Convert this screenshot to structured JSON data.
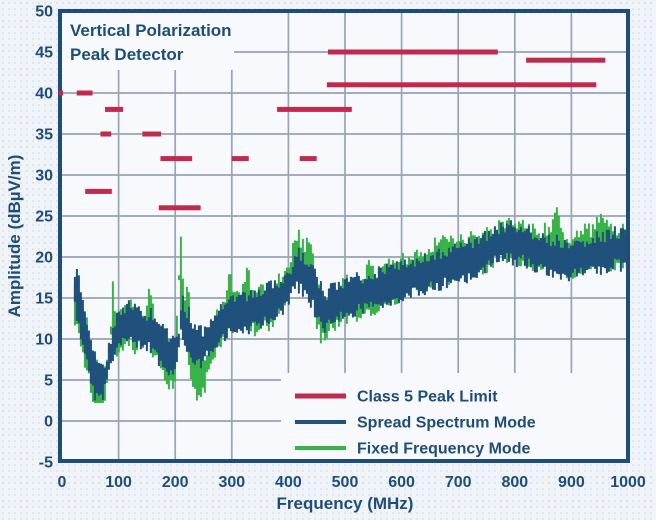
{
  "title": {
    "line1": "Vertical Polarization",
    "line2": "Peak Detector"
  },
  "axes": {
    "x": {
      "label": "Frequency (MHz)",
      "min": 0,
      "max": 1000,
      "tick_step": 100,
      "ticks": [
        0,
        100,
        200,
        300,
        400,
        500,
        600,
        700,
        800,
        900,
        1000
      ]
    },
    "y": {
      "label": "Amplitude (dBµV/m)",
      "min": -5,
      "max": 50,
      "tick_step": 5,
      "ticks": [
        50,
        45,
        40,
        35,
        30,
        25,
        20,
        15,
        10,
        5,
        0,
        -5
      ]
    }
  },
  "legend": {
    "position": "inside-bottom-right",
    "items": [
      {
        "label": "Class 5 Peak Limit",
        "color_key": "limit_red"
      },
      {
        "label": "Spread Spectrum Mode",
        "color_key": "navy_trace"
      },
      {
        "label": "Fixed Frequency Mode",
        "color_key": "green_trace"
      }
    ]
  },
  "colors": {
    "navy": "#1d4d78",
    "navy_trace": "#20507c",
    "green_trace": "#38b349",
    "limit_red": "#c02a4d",
    "grid": "#98a2b8",
    "page_bg": "#f0f3f8",
    "page_dot": "#dde4f0",
    "plot_bg": "#f7f9fc"
  },
  "chart_data": {
    "type": "line",
    "title": "Vertical Polarization Peak Detector",
    "xlabel": "Frequency (MHz)",
    "ylabel": "Amplitude (dBµV/m)",
    "xlim": [
      0,
      1000
    ],
    "ylim": [
      -5,
      50
    ],
    "grid": true,
    "legend_position": "inside-bottom-right",
    "series": [
      {
        "name": "Class 5 Peak Limit",
        "style": "limit_segments",
        "color_key": "limit_red",
        "unit": "dBµV/m",
        "segments": [
          {
            "from": -6,
            "to": 2,
            "level": 40
          },
          {
            "from": 26,
            "to": 54,
            "level": 40
          },
          {
            "from": 41,
            "to": 88,
            "level": 28
          },
          {
            "from": 68,
            "to": 87,
            "level": 35
          },
          {
            "from": 76,
            "to": 108,
            "level": 38
          },
          {
            "from": 142,
            "to": 175,
            "level": 35
          },
          {
            "from": 171,
            "to": 245,
            "level": 26
          },
          {
            "from": 174,
            "to": 230,
            "level": 32
          },
          {
            "from": 300,
            "to": 330,
            "level": 32
          },
          {
            "from": 380,
            "to": 512,
            "level": 38
          },
          {
            "from": 420,
            "to": 450,
            "level": 32
          },
          {
            "from": 468,
            "to": 944,
            "level": 41
          },
          {
            "from": 470,
            "to": 770,
            "level": 45
          },
          {
            "from": 820,
            "to": 960,
            "level": 44
          }
        ]
      },
      {
        "name": "Fixed Frequency Mode",
        "style": "noisy_band",
        "color_key": "green_trace",
        "band_halfwidth": 1.3,
        "noise_amp": 1.9,
        "seed": 3,
        "points": [
          [
            21,
            14
          ],
          [
            24,
            14
          ],
          [
            27,
            13.5
          ],
          [
            30,
            13
          ],
          [
            34,
            12
          ],
          [
            38,
            10.5
          ],
          [
            42,
            9.5
          ],
          [
            46,
            8.5
          ],
          [
            50,
            7
          ],
          [
            54,
            5.5
          ],
          [
            58,
            4.8
          ],
          [
            62,
            4.2
          ],
          [
            66,
            4
          ],
          [
            70,
            3.8
          ],
          [
            74,
            4.5
          ],
          [
            78,
            5.5
          ],
          [
            82,
            7
          ],
          [
            86,
            10
          ],
          [
            89,
            15.5
          ],
          [
            92,
            11
          ],
          [
            96,
            10
          ],
          [
            100,
            10.5
          ],
          [
            104,
            10.5
          ],
          [
            108,
            11
          ],
          [
            113,
            11.5
          ],
          [
            118,
            12.5
          ],
          [
            124,
            11.5
          ],
          [
            130,
            11
          ],
          [
            136,
            11.5
          ],
          [
            142,
            11
          ],
          [
            148,
            12
          ],
          [
            153,
            15.5
          ],
          [
            157,
            12
          ],
          [
            162,
            10.5
          ],
          [
            166,
            10
          ],
          [
            172,
            9.5
          ],
          [
            178,
            8.5
          ],
          [
            184,
            7.5
          ],
          [
            190,
            7
          ],
          [
            196,
            6.5
          ],
          [
            202,
            8
          ],
          [
            205,
            16
          ],
          [
            209,
            20.5
          ],
          [
            213,
            14
          ],
          [
            217,
            12
          ],
          [
            221,
            15
          ],
          [
            225,
            10
          ],
          [
            230,
            6.5
          ],
          [
            236,
            5.5
          ],
          [
            242,
            5
          ],
          [
            248,
            5.5
          ],
          [
            254,
            6.5
          ],
          [
            260,
            8
          ],
          [
            266,
            9.5
          ],
          [
            272,
            10.5
          ],
          [
            280,
            11.5
          ],
          [
            288,
            13.5
          ],
          [
            294,
            15
          ],
          [
            300,
            14.5
          ],
          [
            306,
            13
          ],
          [
            312,
            13.5
          ],
          [
            318,
            14.5
          ],
          [
            324,
            16
          ],
          [
            330,
            15
          ],
          [
            336,
            13.5
          ],
          [
            342,
            13
          ],
          [
            350,
            13.5
          ],
          [
            358,
            14
          ],
          [
            366,
            14
          ],
          [
            374,
            14.5
          ],
          [
            382,
            15
          ],
          [
            390,
            15.5
          ],
          [
            398,
            16.5
          ],
          [
            404,
            18.5
          ],
          [
            410,
            20
          ],
          [
            416,
            20.5
          ],
          [
            422,
            19.5
          ],
          [
            428,
            19
          ],
          [
            434,
            19.5
          ],
          [
            440,
            18.5
          ],
          [
            446,
            16.5
          ],
          [
            452,
            14
          ],
          [
            458,
            12.5
          ],
          [
            464,
            12
          ],
          [
            470,
            12.5
          ],
          [
            480,
            13.5
          ],
          [
            490,
            14
          ],
          [
            500,
            15.5
          ],
          [
            510,
            14.5
          ],
          [
            520,
            15
          ],
          [
            530,
            15.5
          ],
          [
            540,
            16.5
          ],
          [
            550,
            15.5
          ],
          [
            560,
            16
          ],
          [
            570,
            16.5
          ],
          [
            580,
            17
          ],
          [
            590,
            17
          ],
          [
            600,
            17.5
          ],
          [
            612,
            17.5
          ],
          [
            624,
            18
          ],
          [
            636,
            18.5
          ],
          [
            648,
            18.5
          ],
          [
            660,
            19.5
          ],
          [
            670,
            20.5
          ],
          [
            680,
            19.5
          ],
          [
            696,
            19.5
          ],
          [
            708,
            20
          ],
          [
            720,
            20
          ],
          [
            732,
            20.5
          ],
          [
            744,
            20.5
          ],
          [
            756,
            21
          ],
          [
            768,
            21.5
          ],
          [
            780,
            22
          ],
          [
            792,
            22
          ],
          [
            804,
            22
          ],
          [
            816,
            21.5
          ],
          [
            828,
            21.5
          ],
          [
            840,
            21
          ],
          [
            852,
            21
          ],
          [
            864,
            21.5
          ],
          [
            872,
            23.5
          ],
          [
            880,
            21
          ],
          [
            888,
            20.5
          ],
          [
            900,
            20
          ],
          [
            912,
            20.5
          ],
          [
            924,
            21
          ],
          [
            936,
            21
          ],
          [
            948,
            22.5
          ],
          [
            956,
            22.5
          ],
          [
            964,
            21.5
          ],
          [
            972,
            21
          ],
          [
            984,
            21.5
          ],
          [
            996,
            21.5
          ],
          [
            1000,
            21.5
          ]
        ]
      },
      {
        "name": "Spread Spectrum Mode",
        "style": "noisy_band",
        "color_key": "navy_trace",
        "band_halfwidth": 1.2,
        "noise_amp": 1.6,
        "seed": 7,
        "points": [
          [
            21,
            16
          ],
          [
            24,
            16.5
          ],
          [
            27,
            15.5
          ],
          [
            30,
            14
          ],
          [
            34,
            12.5
          ],
          [
            38,
            11
          ],
          [
            42,
            10
          ],
          [
            46,
            9
          ],
          [
            50,
            8
          ],
          [
            54,
            6.5
          ],
          [
            58,
            5.5
          ],
          [
            62,
            5
          ],
          [
            66,
            4.8
          ],
          [
            70,
            4.5
          ],
          [
            74,
            5
          ],
          [
            78,
            6
          ],
          [
            82,
            7
          ],
          [
            86,
            8.5
          ],
          [
            90,
            9.5
          ],
          [
            94,
            10.5
          ],
          [
            98,
            11
          ],
          [
            103,
            11.5
          ],
          [
            108,
            11.5
          ],
          [
            113,
            12
          ],
          [
            118,
            12.5
          ],
          [
            124,
            12
          ],
          [
            130,
            11.5
          ],
          [
            136,
            11.5
          ],
          [
            142,
            11
          ],
          [
            148,
            11
          ],
          [
            154,
            11.5
          ],
          [
            160,
            10.5
          ],
          [
            166,
            10
          ],
          [
            172,
            9.5
          ],
          [
            178,
            9
          ],
          [
            184,
            8.5
          ],
          [
            190,
            8
          ],
          [
            196,
            7.5
          ],
          [
            202,
            8
          ],
          [
            207,
            10
          ],
          [
            211,
            14
          ],
          [
            215,
            12
          ],
          [
            219,
            10.5
          ],
          [
            224,
            11.5
          ],
          [
            228,
            9.5
          ],
          [
            234,
            9
          ],
          [
            240,
            9.5
          ],
          [
            246,
            9
          ],
          [
            252,
            9.5
          ],
          [
            258,
            10
          ],
          [
            264,
            10.5
          ],
          [
            270,
            11
          ],
          [
            278,
            11.5
          ],
          [
            286,
            12
          ],
          [
            294,
            12.5
          ],
          [
            302,
            13
          ],
          [
            310,
            13
          ],
          [
            318,
            13.5
          ],
          [
            326,
            13
          ],
          [
            334,
            13.5
          ],
          [
            342,
            13.5
          ],
          [
            350,
            14
          ],
          [
            358,
            14
          ],
          [
            366,
            14.5
          ],
          [
            374,
            14.5
          ],
          [
            382,
            15
          ],
          [
            390,
            15.5
          ],
          [
            398,
            16
          ],
          [
            406,
            17
          ],
          [
            412,
            18
          ],
          [
            418,
            18.5
          ],
          [
            424,
            18
          ],
          [
            430,
            17.5
          ],
          [
            436,
            17
          ],
          [
            442,
            16.5
          ],
          [
            448,
            15.5
          ],
          [
            454,
            14.5
          ],
          [
            460,
            14
          ],
          [
            466,
            13.5
          ],
          [
            472,
            14
          ],
          [
            480,
            14.5
          ],
          [
            490,
            14.5
          ],
          [
            500,
            15
          ],
          [
            510,
            15
          ],
          [
            520,
            15.5
          ],
          [
            530,
            15.5
          ],
          [
            540,
            16
          ],
          [
            550,
            16
          ],
          [
            560,
            16
          ],
          [
            570,
            16.5
          ],
          [
            580,
            16.5
          ],
          [
            590,
            17
          ],
          [
            600,
            17
          ],
          [
            612,
            17.5
          ],
          [
            624,
            17.5
          ],
          [
            636,
            18
          ],
          [
            648,
            18
          ],
          [
            660,
            18.5
          ],
          [
            672,
            18.5
          ],
          [
            684,
            19
          ],
          [
            696,
            19.5
          ],
          [
            708,
            19.5
          ],
          [
            720,
            19.5
          ],
          [
            732,
            20
          ],
          [
            744,
            20.5
          ],
          [
            756,
            21
          ],
          [
            768,
            21.5
          ],
          [
            780,
            21.5
          ],
          [
            792,
            22
          ],
          [
            804,
            21.5
          ],
          [
            816,
            21.5
          ],
          [
            828,
            21
          ],
          [
            840,
            20.5
          ],
          [
            852,
            20.5
          ],
          [
            864,
            20
          ],
          [
            876,
            20
          ],
          [
            888,
            19.5
          ],
          [
            900,
            19.5
          ],
          [
            912,
            20
          ],
          [
            924,
            20
          ],
          [
            936,
            20.5
          ],
          [
            948,
            20.5
          ],
          [
            960,
            20.5
          ],
          [
            972,
            21
          ],
          [
            984,
            21
          ],
          [
            996,
            21
          ],
          [
            1000,
            21
          ]
        ]
      }
    ]
  }
}
